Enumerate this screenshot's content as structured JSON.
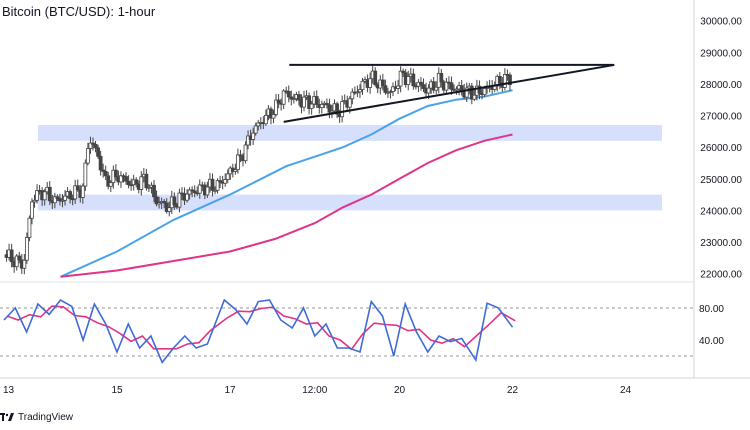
{
  "title": "Bitcoin (BTC/USD): 1-hour",
  "branding": {
    "name": "TradingView",
    "logo": "tradingview-logo-icon"
  },
  "colors": {
    "bull": "#26a69a",
    "bear": "#ef5350",
    "candle": "#444444",
    "sma100": "#4aa3e8",
    "sma200": "#e0338a",
    "zone": "#cfd9fb",
    "trendline": "#131722",
    "stoch_k": "#3f6bd6",
    "stoch_d": "#e0338a"
  },
  "chart_data": [
    {
      "type": "candlestick",
      "title": "Bitcoin (BTC/USD): 1-hour",
      "x_ticks": [
        "13",
        "15",
        "17",
        "12:00",
        "20",
        "22",
        "24"
      ],
      "y_ticks": [
        "30000.00",
        "29000.00",
        "28000.00",
        "27000.00",
        "26000.00",
        "25000.00",
        "24000.00",
        "23000.00",
        "22000.00"
      ],
      "ylim": [
        21800,
        30400
      ],
      "price_path": [
        [
          13.0,
          22600
        ],
        [
          13.2,
          22400
        ],
        [
          13.35,
          22300
        ],
        [
          13.5,
          24400
        ],
        [
          13.7,
          24600
        ],
        [
          13.9,
          24300
        ],
        [
          14.2,
          24500
        ],
        [
          14.4,
          24700
        ],
        [
          14.5,
          26300
        ],
        [
          14.65,
          25800
        ],
        [
          14.8,
          24900
        ],
        [
          15.0,
          25100
        ],
        [
          15.3,
          24800
        ],
        [
          15.5,
          25000
        ],
        [
          15.7,
          24300
        ],
        [
          15.9,
          24100
        ],
        [
          16.2,
          24500
        ],
        [
          16.5,
          24700
        ],
        [
          16.8,
          24800
        ],
        [
          17.0,
          25200
        ],
        [
          17.2,
          25700
        ],
        [
          17.4,
          26500
        ],
        [
          17.6,
          26900
        ],
        [
          17.8,
          27200
        ],
        [
          17.95,
          27700
        ],
        [
          18.2,
          27500
        ],
        [
          18.5,
          27400
        ],
        [
          18.7,
          27300
        ],
        [
          18.9,
          27100
        ],
        [
          19.1,
          27500
        ],
        [
          19.3,
          27900
        ],
        [
          19.5,
          28200
        ],
        [
          19.7,
          27900
        ],
        [
          19.85,
          27700
        ],
        [
          20.05,
          28300
        ],
        [
          20.3,
          28000
        ],
        [
          20.5,
          27800
        ],
        [
          20.7,
          28100
        ],
        [
          20.9,
          27900
        ],
        [
          21.1,
          27800
        ],
        [
          21.35,
          27700
        ],
        [
          21.6,
          27900
        ],
        [
          21.8,
          28100
        ],
        [
          22.0,
          28200
        ]
      ],
      "sma100": [
        [
          14.0,
          21900
        ],
        [
          15.0,
          22700
        ],
        [
          16.0,
          23700
        ],
        [
          17.0,
          24500
        ],
        [
          18.0,
          25400
        ],
        [
          18.5,
          25700
        ],
        [
          19.0,
          26000
        ],
        [
          19.5,
          26400
        ],
        [
          20.0,
          26900
        ],
        [
          20.5,
          27300
        ],
        [
          21.0,
          27500
        ],
        [
          21.5,
          27600
        ],
        [
          22.0,
          27800
        ]
      ],
      "sma200": [
        [
          14.0,
          21900
        ],
        [
          15.0,
          22100
        ],
        [
          16.0,
          22400
        ],
        [
          17.0,
          22700
        ],
        [
          17.8,
          23100
        ],
        [
          18.5,
          23600
        ],
        [
          19.0,
          24100
        ],
        [
          19.5,
          24500
        ],
        [
          20.0,
          25000
        ],
        [
          20.5,
          25500
        ],
        [
          21.0,
          25900
        ],
        [
          21.5,
          26200
        ],
        [
          22.0,
          26400
        ]
      ],
      "zones": [
        [
          26200,
          26700
        ],
        [
          24000,
          24500
        ]
      ],
      "trendlines": [
        {
          "name": "triangle-resistance",
          "from": [
            18.05,
            28600
          ],
          "to": [
            23.8,
            28600
          ]
        },
        {
          "name": "triangle-support",
          "from": [
            17.95,
            26800
          ],
          "to": [
            23.8,
            28600
          ]
        }
      ]
    },
    {
      "type": "line",
      "indicator": "stochastic",
      "y_ticks": [
        "80.00",
        "40.00"
      ],
      "ylim": [
        0,
        100
      ],
      "levels": [
        80,
        20
      ],
      "k": [
        [
          13.0,
          65
        ],
        [
          13.2,
          80
        ],
        [
          13.4,
          50
        ],
        [
          13.6,
          85
        ],
        [
          13.8,
          72
        ],
        [
          14.0,
          90
        ],
        [
          14.2,
          82
        ],
        [
          14.4,
          40
        ],
        [
          14.6,
          85
        ],
        [
          14.8,
          60
        ],
        [
          15.0,
          25
        ],
        [
          15.2,
          60
        ],
        [
          15.4,
          30
        ],
        [
          15.6,
          45
        ],
        [
          15.8,
          12
        ],
        [
          16.0,
          30
        ],
        [
          16.2,
          45
        ],
        [
          16.4,
          30
        ],
        [
          16.6,
          35
        ],
        [
          16.9,
          90
        ],
        [
          17.1,
          78
        ],
        [
          17.3,
          60
        ],
        [
          17.5,
          88
        ],
        [
          17.7,
          90
        ],
        [
          17.9,
          65
        ],
        [
          18.1,
          55
        ],
        [
          18.3,
          80
        ],
        [
          18.5,
          45
        ],
        [
          18.7,
          60
        ],
        [
          18.9,
          30
        ],
        [
          19.1,
          30
        ],
        [
          19.3,
          25
        ],
        [
          19.5,
          88
        ],
        [
          19.7,
          70
        ],
        [
          19.9,
          20
        ],
        [
          20.1,
          85
        ],
        [
          20.3,
          50
        ],
        [
          20.5,
          25
        ],
        [
          20.7,
          45
        ],
        [
          20.9,
          38
        ],
        [
          21.1,
          42
        ],
        [
          21.35,
          15
        ],
        [
          21.55,
          86
        ],
        [
          21.75,
          80
        ],
        [
          22.0,
          56
        ]
      ]
    }
  ]
}
